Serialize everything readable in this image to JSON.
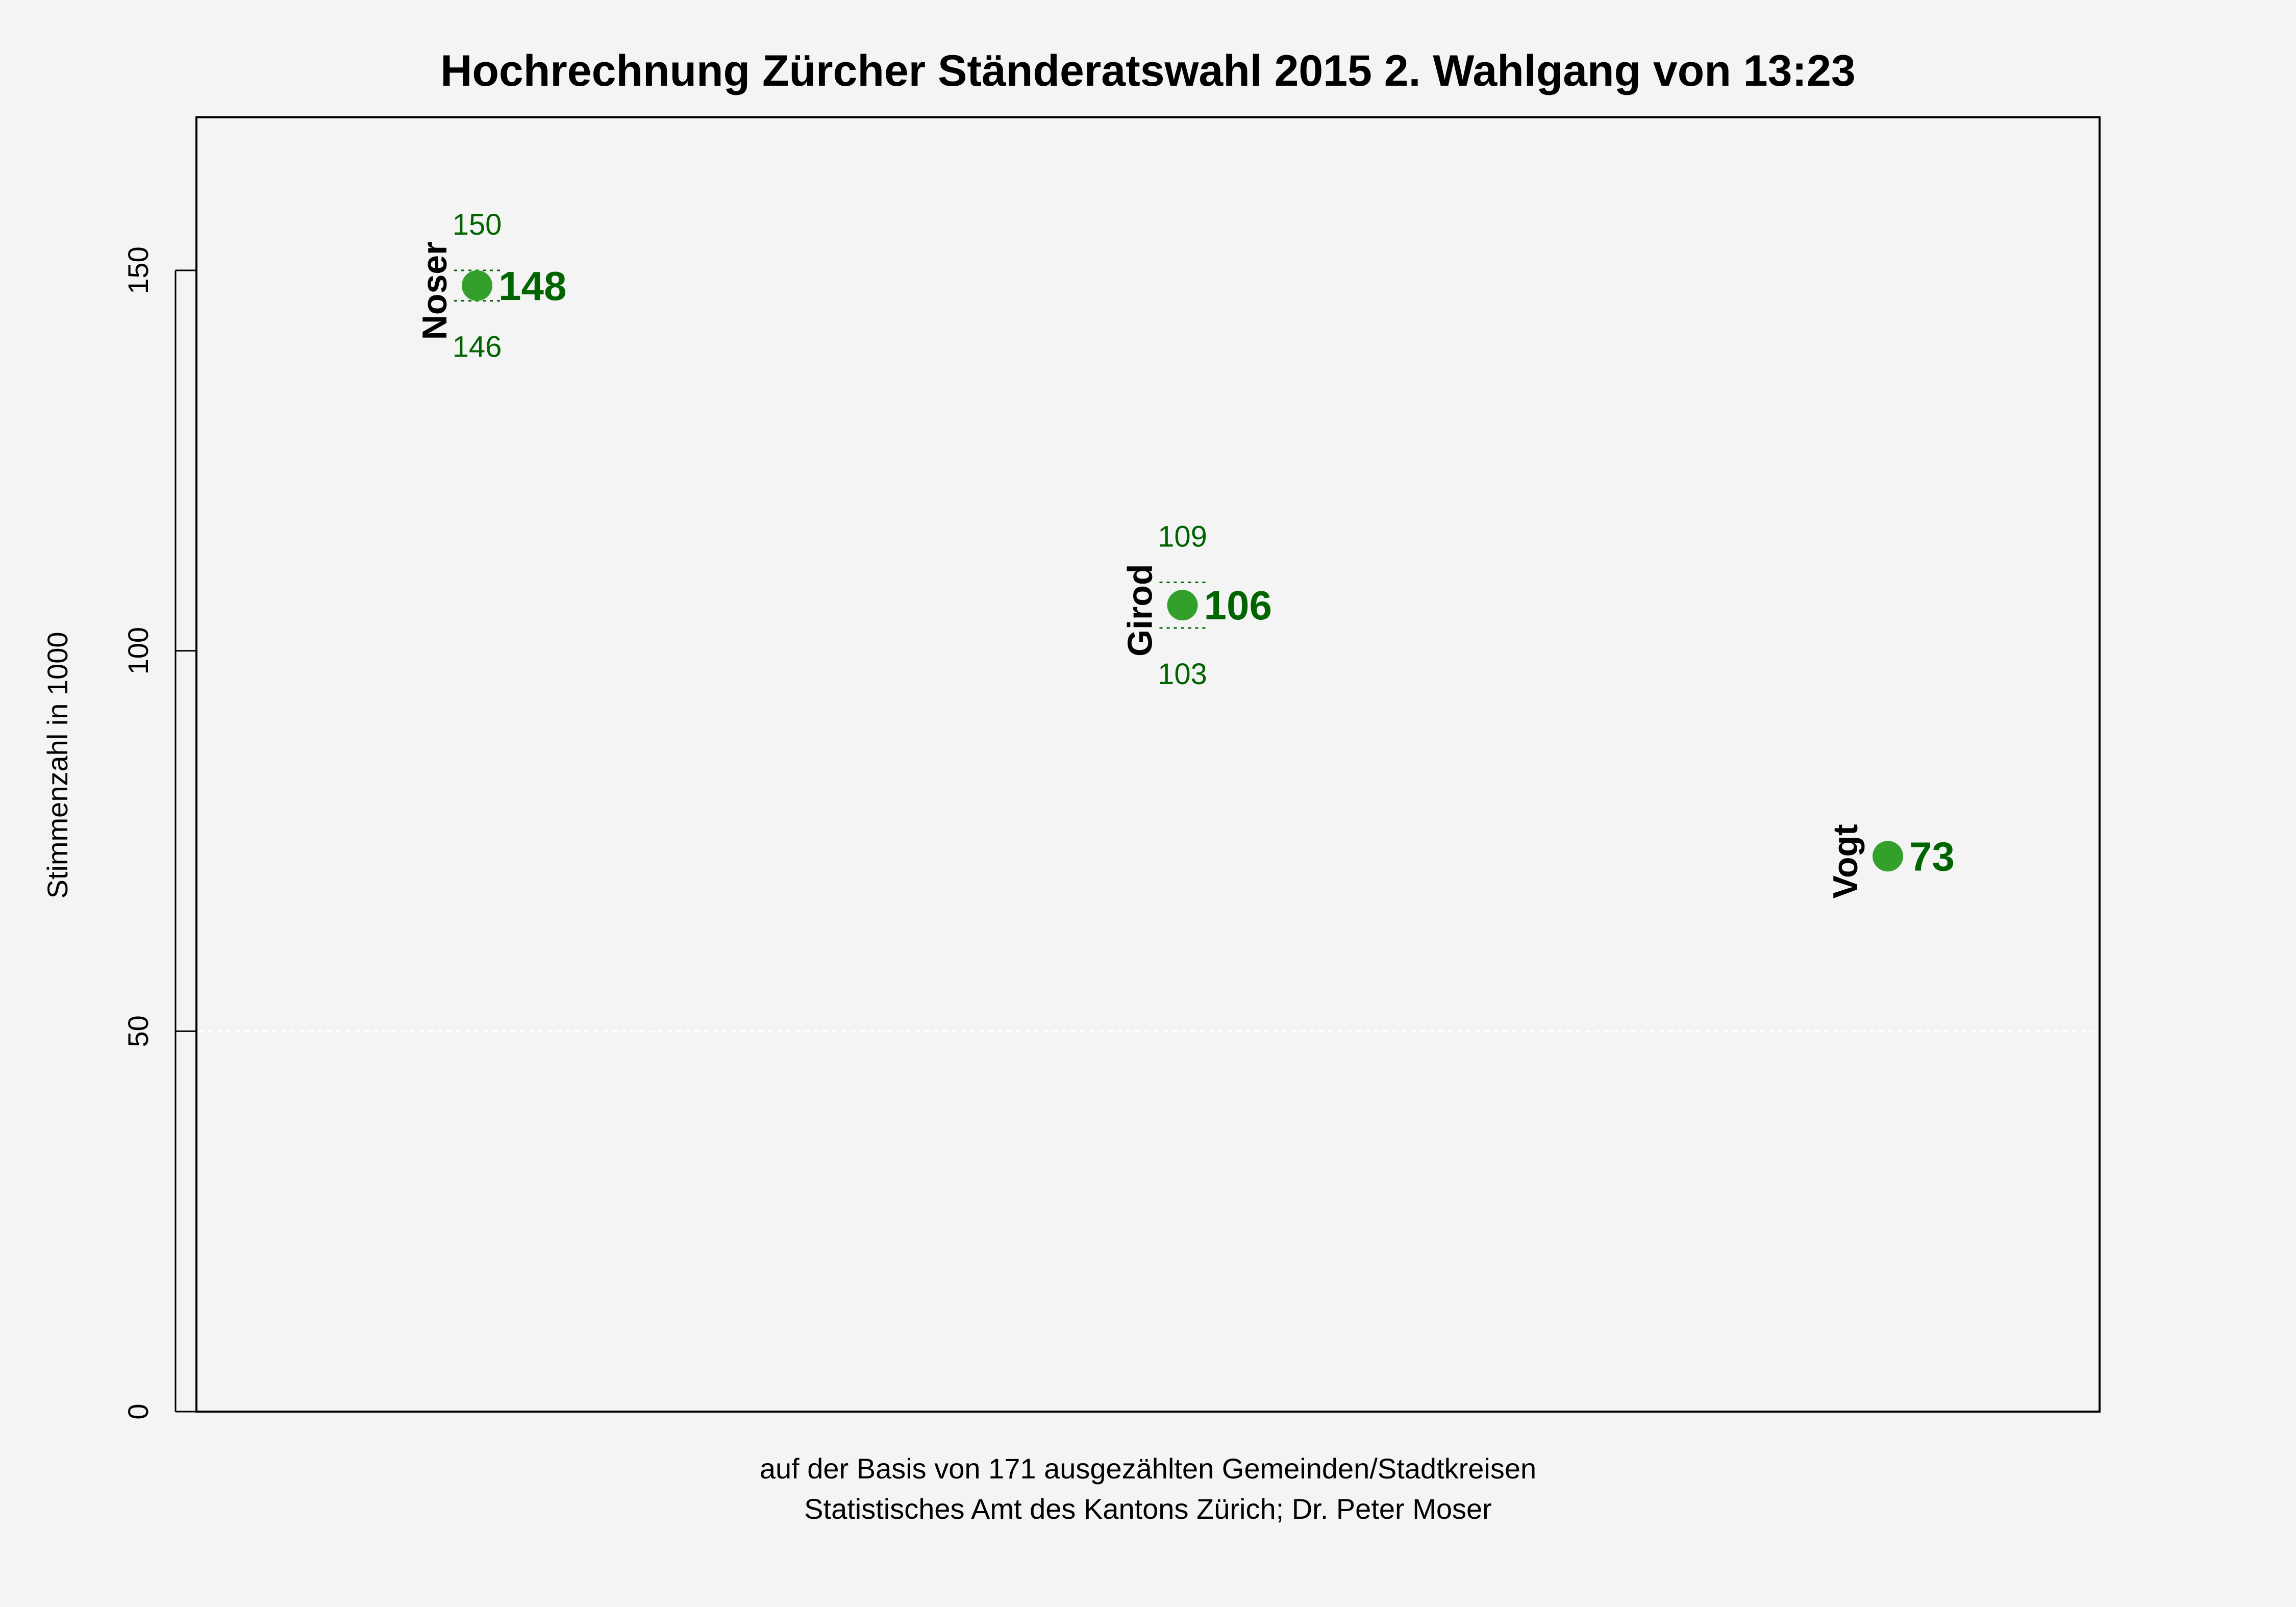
{
  "chart_data": {
    "type": "scatter",
    "title": "Hochrechnung Zürcher Ständeratswahl 2015 2. Wahlgang von 13:23",
    "ylabel": "Stimmenzahl in 1000",
    "xlabel": "",
    "caption_lines": [
      "auf der Basis von 171 ausgezählten Gemeinden/Stadtkreisen",
      "Statistisches Amt des Kantons Zürich; Dr. Peter Moser"
    ],
    "ylim": [
      0,
      170
    ],
    "yticks": [
      0,
      50,
      100,
      150
    ],
    "ytick_labels": [
      "0",
      "50",
      "100",
      "150"
    ],
    "reference_lines": [
      50
    ],
    "grid": false,
    "legend": "none",
    "colors": {
      "background": "#f4f4f4",
      "point": "#33a02c",
      "value_text": "#006400",
      "label_text": "#000000",
      "interval_line": "#006400",
      "axis": "#000000",
      "reference_line": "#ffffff"
    },
    "candidates": [
      {
        "name": "Noser",
        "value": 148,
        "value_label": "148",
        "upper": 150,
        "upper_label": "150",
        "lower": 146,
        "lower_label": "146"
      },
      {
        "name": "Girod",
        "value": 106,
        "value_label": "106",
        "upper": 109,
        "upper_label": "109",
        "lower": 103,
        "lower_label": "103"
      },
      {
        "name": "Vogt",
        "value": 73,
        "value_label": "73",
        "upper": null,
        "upper_label": "",
        "lower": null,
        "lower_label": ""
      }
    ]
  }
}
